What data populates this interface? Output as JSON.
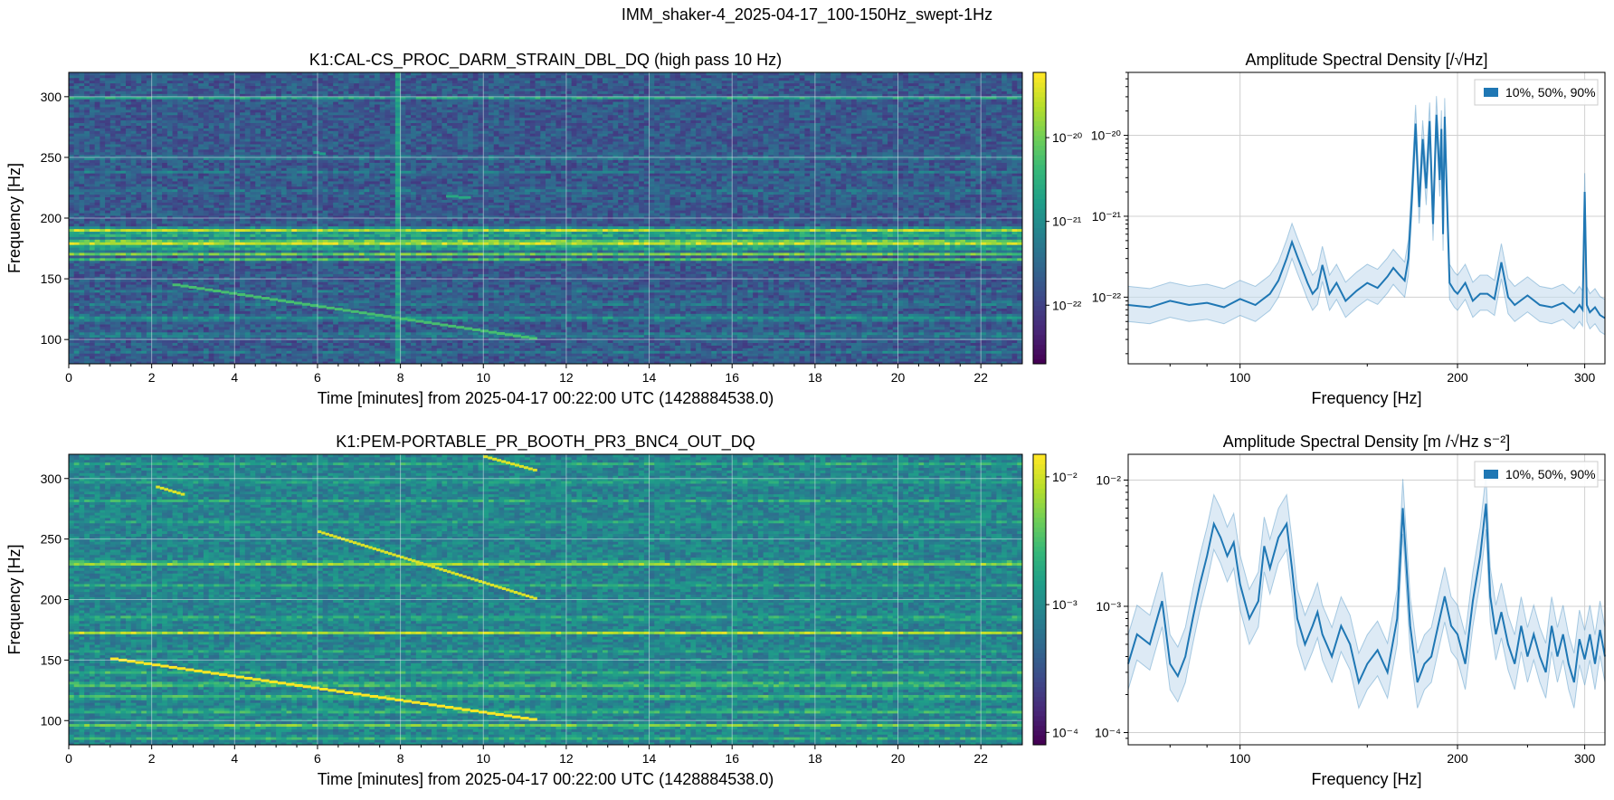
{
  "figure": {
    "title": "IMM_shaker-4_2025-04-17_100-150Hz_swept-1Hz"
  },
  "colors": {
    "asd_line": "#1f77b4",
    "asd_fill": "#c6dcef",
    "grid": "#d0d0d0",
    "viridis_low": "#440154",
    "viridis_high": "#fde725"
  },
  "chart_data": [
    {
      "type": "heatmap",
      "title": "K1:CAL-CS_PROC_DARM_STRAIN_DBL_DQ (high pass 10 Hz)",
      "xlabel": "Time [minutes] from 2025-04-17 00:22:00 UTC (1428884538.0)",
      "ylabel": "Frequency [Hz]",
      "xlim": [
        0,
        23
      ],
      "ylim": [
        80,
        320
      ],
      "xticks": [
        0,
        2,
        4,
        6,
        8,
        10,
        12,
        14,
        16,
        18,
        20,
        22
      ],
      "yticks": [
        100,
        150,
        200,
        250,
        300
      ],
      "colorbar": {
        "scale": "log",
        "range": [
          2e-23,
          6e-20
        ],
        "ticks": [
          1e-22,
          1e-21,
          1e-20
        ],
        "tick_labels": [
          "10⁻²²",
          "10⁻²¹",
          "10⁻²⁰"
        ]
      },
      "background_level": 0.28,
      "bands": [
        {
          "f": 300,
          "width": 1.5,
          "level": 0.72
        },
        {
          "f": 250,
          "width": 3,
          "level": 0.42
        },
        {
          "f": 238,
          "width": 3,
          "level": 0.4
        },
        {
          "f": 222,
          "width": 3,
          "level": 0.4
        },
        {
          "f": 190,
          "width": 3,
          "level": 0.88
        },
        {
          "f": 185,
          "width": 2,
          "level": 0.7
        },
        {
          "f": 180,
          "width": 3,
          "level": 0.95
        },
        {
          "f": 176,
          "width": 2,
          "level": 0.75
        },
        {
          "f": 171,
          "width": 2,
          "level": 0.8
        },
        {
          "f": 166,
          "width": 1.5,
          "level": 0.7
        },
        {
          "f": 140,
          "width": 3,
          "level": 0.38
        },
        {
          "f": 130,
          "width": 3,
          "level": 0.42
        },
        {
          "f": 118,
          "width": 4,
          "level": 0.5
        },
        {
          "f": 104,
          "width": 3,
          "level": 0.45
        },
        {
          "f": 90,
          "width": 3,
          "level": 0.4
        }
      ],
      "sweeps": [
        {
          "t0": 2.5,
          "f0": 145,
          "t1": 11.3,
          "f1": 100,
          "level": 0.7
        },
        {
          "t0": 5.9,
          "f0": 254,
          "t1": 6.2,
          "f1": 252,
          "level": 0.55
        },
        {
          "t0": 9.1,
          "f0": 218,
          "t1": 9.7,
          "f1": 216,
          "level": 0.6
        }
      ],
      "transients": [
        {
          "t": 7.9,
          "level": 0.55
        }
      ]
    },
    {
      "type": "line",
      "title": "Amplitude Spectral Density [/√Hz]",
      "xlabel": "Frequency [Hz]",
      "ylabel": "",
      "x_scale": "log",
      "y_scale": "log",
      "xlim": [
        70,
        320
      ],
      "ylim": [
        1.5e-23,
        6e-20
      ],
      "xticks": [
        100,
        200,
        300
      ],
      "yticks": [
        1e-22,
        1e-21,
        1e-20
      ],
      "ytick_labels": [
        "10⁻²²",
        "10⁻²¹",
        "10⁻²⁰"
      ],
      "legend": {
        "label": "10%, 50%, 90%",
        "position": "top-right"
      },
      "series": [
        {
          "name": "50%",
          "x": [
            70,
            75,
            80,
            85,
            90,
            95,
            100,
            105,
            110,
            113,
            116,
            118,
            120,
            122,
            124,
            126,
            128,
            130,
            133,
            136,
            140,
            145,
            150,
            155,
            160,
            163,
            166,
            169,
            171,
            173,
            175,
            177,
            179,
            181,
            183,
            185,
            187,
            189,
            190,
            191,
            192,
            193,
            195,
            198,
            200,
            205,
            210,
            215,
            220,
            225,
            230,
            235,
            240,
            250,
            260,
            270,
            280,
            290,
            295,
            298,
            300,
            302,
            305,
            310,
            315,
            320
          ],
          "y": [
            8e-23,
            7.5e-23,
            9e-23,
            8e-23,
            8.5e-23,
            7.5e-23,
            9.5e-23,
            8e-23,
            1.1e-22,
            1.6e-22,
            3e-22,
            4.8e-22,
            3.2e-22,
            2.2e-22,
            1.5e-22,
            1.1e-22,
            1.3e-22,
            2.5e-22,
            1.1e-22,
            1.5e-22,
            9e-23,
            1.2e-22,
            1.5e-22,
            1.3e-22,
            1.8e-22,
            2.3e-22,
            1.9e-22,
            1.6e-22,
            3e-22,
            1.8e-21,
            1.4e-20,
            1.3e-21,
            9e-21,
            2.2e-21,
            1.5e-20,
            8e-22,
            1.8e-20,
            2.8e-21,
            1.2e-20,
            6e-22,
            1.7e-20,
            3e-21,
            1.5e-22,
            1.2e-22,
            1.1e-22,
            1.5e-22,
            9e-23,
            1.1e-22,
            1.1e-22,
            9.5e-23,
            2.7e-22,
            1e-22,
            8e-23,
            1.05e-22,
            8e-23,
            7.5e-23,
            8.5e-23,
            6.5e-23,
            8e-23,
            7e-23,
            2e-21,
            8e-23,
            6.5e-23,
            7.5e-23,
            6e-23,
            5.5e-23
          ]
        }
      ]
    },
    {
      "type": "heatmap",
      "title": "K1:PEM-PORTABLE_PR_BOOTH_PR3_BNC4_OUT_DQ",
      "xlabel": "Time [minutes] from 2025-04-17 00:22:00 UTC (1428884538.0)",
      "ylabel": "Frequency [Hz]",
      "xlim": [
        0,
        23
      ],
      "ylim": [
        80,
        320
      ],
      "xticks": [
        0,
        2,
        4,
        6,
        8,
        10,
        12,
        14,
        16,
        18,
        20,
        22
      ],
      "yticks": [
        100,
        150,
        200,
        250,
        300
      ],
      "colorbar": {
        "scale": "log",
        "range": [
          8e-05,
          0.015
        ],
        "ticks": [
          0.0001,
          0.001,
          0.01
        ],
        "tick_labels": [
          "10⁻⁴",
          "10⁻³",
          "10⁻²"
        ]
      },
      "background_level": 0.45,
      "bands": [
        {
          "f": 312,
          "width": 3,
          "level": 0.62
        },
        {
          "f": 298,
          "width": 3,
          "level": 0.6
        },
        {
          "f": 282,
          "width": 3,
          "level": 0.62
        },
        {
          "f": 265,
          "width": 3,
          "level": 0.6
        },
        {
          "f": 230,
          "width": 3,
          "level": 0.85
        },
        {
          "f": 212,
          "width": 3,
          "level": 0.6
        },
        {
          "f": 185,
          "width": 3,
          "level": 0.65
        },
        {
          "f": 173,
          "width": 2,
          "level": 0.88
        },
        {
          "f": 158,
          "width": 3,
          "level": 0.6
        },
        {
          "f": 140,
          "width": 4,
          "level": 0.65
        },
        {
          "f": 130,
          "width": 4,
          "level": 0.7
        },
        {
          "f": 120,
          "width": 4,
          "level": 0.68
        },
        {
          "f": 108,
          "width": 3,
          "level": 0.68
        },
        {
          "f": 96,
          "width": 3,
          "level": 0.78
        },
        {
          "f": 86,
          "width": 3,
          "level": 0.65
        }
      ],
      "sweeps": [
        {
          "t0": 1.0,
          "f0": 151,
          "t1": 11.3,
          "f1": 100,
          "level": 1.0
        },
        {
          "t0": 6.0,
          "f0": 256,
          "t1": 11.3,
          "f1": 200,
          "level": 0.95
        },
        {
          "t0": 2.1,
          "f0": 293,
          "t1": 2.8,
          "f1": 286,
          "level": 0.95
        },
        {
          "t0": 10.0,
          "f0": 318,
          "t1": 11.3,
          "f1": 306,
          "level": 0.95
        }
      ],
      "transients": []
    },
    {
      "type": "line",
      "title": "Amplitude Spectral Density [m /√Hz s⁻²]",
      "xlabel": "Frequency [Hz]",
      "ylabel": "",
      "x_scale": "log",
      "y_scale": "log",
      "xlim": [
        70,
        320
      ],
      "ylim": [
        8e-05,
        0.016
      ],
      "xticks": [
        100,
        200,
        300
      ],
      "yticks": [
        0.0001,
        0.001,
        0.01
      ],
      "ytick_labels": [
        "10⁻⁴",
        "10⁻³",
        "10⁻²"
      ],
      "legend": {
        "label": "10%, 50%, 90%",
        "position": "top-right"
      },
      "series": [
        {
          "name": "50%",
          "x": [
            70,
            72,
            75,
            78,
            80,
            82,
            84,
            86,
            88,
            90,
            92,
            94,
            96,
            98,
            100,
            103,
            106,
            108,
            110,
            113,
            116,
            118,
            120,
            123,
            126,
            128,
            130,
            134,
            138,
            142,
            146,
            150,
            155,
            160,
            165,
            168,
            172,
            176,
            180,
            184,
            188,
            192,
            196,
            200,
            205,
            210,
            215,
            219,
            222,
            226,
            230,
            235,
            240,
            245,
            250,
            255,
            260,
            265,
            270,
            275,
            280,
            285,
            290,
            295,
            300,
            305,
            310,
            315,
            320
          ],
          "y": [
            0.00035,
            0.0006,
            0.0005,
            0.0011,
            0.00035,
            0.00028,
            0.0004,
            0.0008,
            0.0015,
            0.0025,
            0.0045,
            0.0035,
            0.0025,
            0.0032,
            0.0015,
            0.0008,
            0.0011,
            0.003,
            0.002,
            0.0035,
            0.0045,
            0.002,
            0.0008,
            0.0005,
            0.0007,
            0.0009,
            0.0006,
            0.0004,
            0.0007,
            0.0005,
            0.00025,
            0.00035,
            0.00045,
            0.0003,
            0.0008,
            0.006,
            0.0007,
            0.00025,
            0.00035,
            0.0004,
            0.0007,
            0.0012,
            0.0007,
            0.0006,
            0.00035,
            0.0011,
            0.0025,
            0.0065,
            0.0012,
            0.0006,
            0.0009,
            0.0005,
            0.00035,
            0.0007,
            0.0004,
            0.0006,
            0.0004,
            0.0003,
            0.0007,
            0.0004,
            0.0006,
            0.00035,
            0.00025,
            0.00055,
            0.00038,
            0.0006,
            0.00035,
            0.00065,
            0.0004
          ]
        }
      ]
    }
  ]
}
